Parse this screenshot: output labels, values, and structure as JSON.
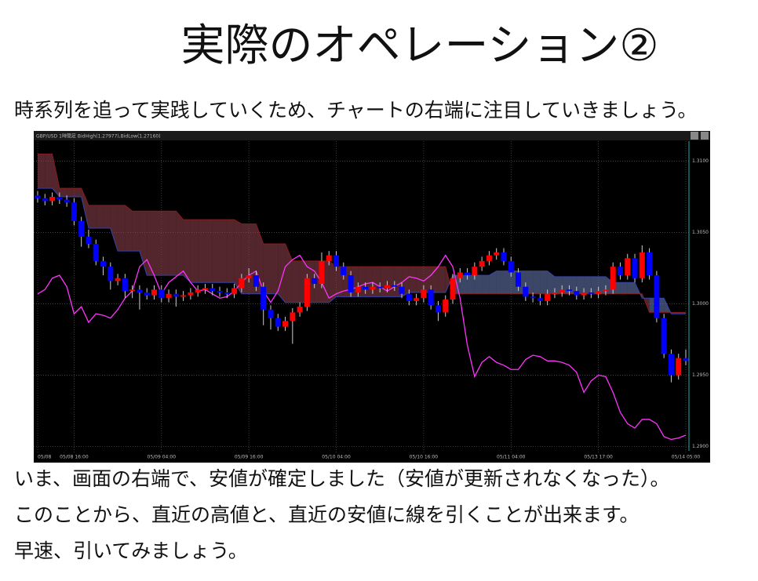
{
  "title": "実際のオペレーション②",
  "intro": "時系列を追って実践していくため、チャートの右端に注目していきましょう。",
  "chart_data": {
    "type": "candlestick",
    "header": "GBP/USD 1時間足 BidHigh(1.27977),BidLow(1.27160)",
    "up_color": "#ff0000",
    "down_color": "#0000ff",
    "line_color": "#ff33ff",
    "grid": true,
    "ylim": [
      1.2897,
      1.3114
    ],
    "yticks": [
      {
        "value": 1.31,
        "label": "1.3100"
      },
      {
        "value": 1.305,
        "label": "1.3050"
      },
      {
        "value": 1.3,
        "label": "1.3000"
      },
      {
        "value": 1.295,
        "label": "1.2950"
      },
      {
        "value": 1.29,
        "label": "1.2900"
      }
    ],
    "xticks": [
      {
        "value": 0,
        "label": "05/08"
      },
      {
        "value": 5,
        "label": "05/08 16:00"
      },
      {
        "value": 17,
        "label": "05/09 04:00"
      },
      {
        "value": 29,
        "label": "05/09 16:00"
      },
      {
        "value": 41,
        "label": "05/10 04:00"
      },
      {
        "value": 53,
        "label": "05/10 16:00"
      },
      {
        "value": 65,
        "label": "05/11 04:00"
      },
      {
        "value": 77,
        "label": "05/13 17:00"
      },
      {
        "value": 89,
        "label": "05/14 05:00"
      }
    ],
    "candles": [
      [
        1.3076,
        1.3079,
        1.3071,
        1.3074
      ],
      [
        1.3074,
        1.3077,
        1.3069,
        1.3072
      ],
      [
        1.3072,
        1.3078,
        1.3069,
        1.3075
      ],
      [
        1.3075,
        1.3078,
        1.307,
        1.3073
      ],
      [
        1.3073,
        1.3076,
        1.3068,
        1.3071
      ],
      [
        1.3071,
        1.3074,
        1.3055,
        1.3058
      ],
      [
        1.3058,
        1.3061,
        1.304,
        1.3047
      ],
      [
        1.3047,
        1.3052,
        1.3039,
        1.3042
      ],
      [
        1.3042,
        1.3045,
        1.3027,
        1.303
      ],
      [
        1.303,
        1.3033,
        1.302,
        1.3026
      ],
      [
        1.3026,
        1.3029,
        1.301,
        1.3016
      ],
      [
        1.3016,
        1.3021,
        1.3013,
        1.3018
      ],
      [
        1.3018,
        1.3021,
        1.3004,
        1.3009
      ],
      [
        1.3009,
        1.3013,
        1.3004,
        1.301
      ],
      [
        1.301,
        1.3013,
        1.2996,
        1.3008
      ],
      [
        1.3008,
        1.3011,
        1.3003,
        1.3006
      ],
      [
        1.3006,
        1.3013,
        1.3003,
        1.301
      ],
      [
        1.301,
        1.3013,
        1.3001,
        1.3004
      ],
      [
        1.3004,
        1.301,
        1.3001,
        1.3007
      ],
      [
        1.3007,
        1.301,
        1.2998,
        1.3005
      ],
      [
        1.3005,
        1.3009,
        1.3002,
        1.3006
      ],
      [
        1.3006,
        1.3011,
        1.3003,
        1.3008
      ],
      [
        1.3008,
        1.3013,
        1.3005,
        1.301
      ],
      [
        1.301,
        1.3014,
        1.3007,
        1.3011
      ],
      [
        1.3011,
        1.3014,
        1.3006,
        1.3009
      ],
      [
        1.3009,
        1.3012,
        1.3005,
        1.3008
      ],
      [
        1.3008,
        1.3011,
        1.3004,
        1.3007
      ],
      [
        1.3007,
        1.3014,
        1.3004,
        1.3011
      ],
      [
        1.3011,
        1.3021,
        1.3008,
        1.3018
      ],
      [
        1.3018,
        1.3025,
        1.3015,
        1.302
      ],
      [
        1.302,
        1.3023,
        1.3009,
        1.3012
      ],
      [
        1.3012,
        1.3015,
        1.2985,
        1.2996
      ],
      [
        1.2996,
        1.2999,
        1.2982,
        1.299
      ],
      [
        1.299,
        1.2993,
        1.2981,
        1.2984
      ],
      [
        1.2984,
        1.2991,
        1.2981,
        1.2988
      ],
      [
        1.2988,
        1.2997,
        1.2972,
        1.2994
      ],
      [
        1.2994,
        1.3001,
        1.2991,
        1.2998
      ],
      [
        1.2998,
        1.3021,
        1.2995,
        1.3018
      ],
      [
        1.3018,
        1.3021,
        1.3011,
        1.3014
      ],
      [
        1.3014,
        1.3036,
        1.3011,
        1.303
      ],
      [
        1.303,
        1.3037,
        1.3027,
        1.3034
      ],
      [
        1.3034,
        1.3037,
        1.3023,
        1.3026
      ],
      [
        1.3026,
        1.3029,
        1.3017,
        1.302
      ],
      [
        1.302,
        1.3023,
        1.3005,
        1.3008
      ],
      [
        1.3008,
        1.3015,
        1.3005,
        1.3012
      ],
      [
        1.3012,
        1.3015,
        1.3007,
        1.301
      ],
      [
        1.301,
        1.3015,
        1.3007,
        1.3012
      ],
      [
        1.3012,
        1.3015,
        1.3008,
        1.3011
      ],
      [
        1.3011,
        1.3016,
        1.3008,
        1.3013
      ],
      [
        1.3013,
        1.3016,
        1.3009,
        1.3012
      ],
      [
        1.3012,
        1.3015,
        1.3004,
        1.3007
      ],
      [
        1.3007,
        1.301,
        1.2999,
        1.3002
      ],
      [
        1.3002,
        1.3007,
        1.2999,
        1.3004
      ],
      [
        1.3004,
        1.3013,
        1.3001,
        1.301
      ],
      [
        1.301,
        1.3013,
        1.2996,
        1.2999
      ],
      [
        1.2999,
        1.3002,
        1.2988,
        1.2994
      ],
      [
        1.2994,
        1.3006,
        1.2991,
        1.3003
      ],
      [
        1.3003,
        1.3021,
        1.3,
        1.3018
      ],
      [
        1.3018,
        1.3025,
        1.3015,
        1.3022
      ],
      [
        1.3022,
        1.3025,
        1.3017,
        1.302
      ],
      [
        1.302,
        1.3029,
        1.3017,
        1.3026
      ],
      [
        1.3026,
        1.3033,
        1.3023,
        1.303
      ],
      [
        1.303,
        1.3037,
        1.3027,
        1.3034
      ],
      [
        1.3034,
        1.3039,
        1.3031,
        1.3036
      ],
      [
        1.3036,
        1.3039,
        1.3027,
        1.303
      ],
      [
        1.303,
        1.3033,
        1.3019,
        1.3022
      ],
      [
        1.3022,
        1.3025,
        1.3009,
        1.3012
      ],
      [
        1.3012,
        1.3015,
        1.3002,
        1.3005
      ],
      [
        1.3005,
        1.3008,
        1.3001,
        1.3004
      ],
      [
        1.3004,
        1.3007,
        1.2999,
        1.3002
      ],
      [
        1.3002,
        1.301,
        1.2999,
        1.3007
      ],
      [
        1.3007,
        1.3011,
        1.3004,
        1.3008
      ],
      [
        1.3008,
        1.3013,
        1.3005,
        1.301
      ],
      [
        1.301,
        1.3013,
        1.3006,
        1.3009
      ],
      [
        1.3009,
        1.3012,
        1.3003,
        1.3006
      ],
      [
        1.3006,
        1.3011,
        1.3003,
        1.3008
      ],
      [
        1.3008,
        1.3011,
        1.3004,
        1.3007
      ],
      [
        1.3007,
        1.3012,
        1.3004,
        1.3009
      ],
      [
        1.3009,
        1.3013,
        1.3006,
        1.301
      ],
      [
        1.301,
        1.3029,
        1.3007,
        1.3026
      ],
      [
        1.3026,
        1.3029,
        1.3017,
        1.302
      ],
      [
        1.302,
        1.3035,
        1.3017,
        1.3032
      ],
      [
        1.3032,
        1.3035,
        1.3015,
        1.3018
      ],
      [
        1.3018,
        1.3041,
        1.3015,
        1.3036
      ],
      [
        1.3036,
        1.3039,
        1.3017,
        1.302
      ],
      [
        1.302,
        1.3023,
        1.2987,
        1.299
      ],
      [
        1.299,
        1.2993,
        1.2962,
        1.2965
      ],
      [
        1.2965,
        1.2968,
        1.2945,
        1.295
      ],
      [
        1.295,
        1.2965,
        1.2947,
        1.2962
      ],
      [
        1.2962,
        1.2968,
        1.2957,
        1.296
      ]
    ],
    "lagging_line": [
      1.3007,
      1.301,
      1.3018,
      1.302,
      1.3012,
      1.2993,
      1.2998,
      1.2987,
      1.2993,
      1.2992,
      1.299,
      1.2996,
      1.3004,
      1.3009,
      1.3026,
      1.3031,
      1.302,
      1.3007,
      1.3015,
      1.3019,
      1.3023,
      1.3015,
      1.3009,
      1.301,
      1.3007,
      1.3004,
      1.3005,
      1.3009,
      1.3015,
      1.302,
      1.3023,
      1.3009,
      1.3001,
      1.3009,
      1.3026,
      1.3031,
      1.3034,
      1.3026,
      1.3023,
      1.3015,
      1.3004,
      1.3007,
      1.3009,
      1.301,
      1.3012,
      1.3014,
      1.3015,
      1.3012,
      1.3009,
      1.3012,
      1.3015,
      1.3019,
      1.3018,
      1.3016,
      1.302,
      1.3026,
      1.3034,
      1.3026,
      1.3004,
      1.2971,
      1.2949,
      1.2959,
      1.2963,
      1.2959,
      1.2957,
      1.2954,
      1.2954,
      1.2961,
      1.2964,
      1.2963,
      1.296,
      1.296,
      1.2959,
      1.2957,
      1.2952,
      1.2938,
      1.2946,
      1.295,
      1.2949,
      1.2938,
      1.2924,
      1.2916,
      1.2913,
      1.2919,
      1.2919,
      1.2916,
      1.2907,
      1.2905,
      1.2906,
      1.2908
    ],
    "span_a": [
      1.3081,
      1.3081,
      1.3081,
      1.3075,
      1.3075,
      1.3075,
      1.3075,
      1.3053,
      1.3053,
      1.3053,
      1.3053,
      1.3037,
      1.3037,
      1.3037,
      1.3037,
      1.302,
      1.302,
      1.302,
      1.302,
      1.302,
      1.302,
      1.3015,
      1.3015,
      1.3015,
      1.3015,
      1.3015,
      1.3015,
      1.3015,
      1.3007,
      1.3007,
      1.3007,
      1.3007,
      1.3007,
      1.3007,
      1.3001,
      1.3001,
      1.3001,
      1.3001,
      1.3001,
      1.3001,
      1.3001,
      1.3005,
      1.3005,
      1.3005,
      1.3005,
      1.3005,
      1.3005,
      1.3005,
      1.3005,
      1.3005,
      1.3005,
      1.3008,
      1.3008,
      1.3008,
      1.3008,
      1.3008,
      1.3008,
      1.302,
      1.302,
      1.302,
      1.302,
      1.302,
      1.302,
      1.3023,
      1.3023,
      1.3023,
      1.3023,
      1.3023,
      1.3023,
      1.3023,
      1.3023,
      1.3019,
      1.3019,
      1.3019,
      1.3019,
      1.3019,
      1.3019,
      1.3019,
      1.3019,
      1.3015,
      1.3015,
      1.3015,
      1.3015,
      1.3004,
      1.3004,
      1.3004,
      1.3004,
      1.2993,
      1.2993,
      1.2993
    ],
    "span_b": [
      1.3105,
      1.3105,
      1.3105,
      1.3081,
      1.3081,
      1.3081,
      1.3081,
      1.3069,
      1.3069,
      1.3069,
      1.3069,
      1.3069,
      1.3069,
      1.3065,
      1.3065,
      1.3065,
      1.3065,
      1.3065,
      1.3065,
      1.3065,
      1.3059,
      1.3059,
      1.3059,
      1.3059,
      1.3059,
      1.3059,
      1.3059,
      1.3059,
      1.3056,
      1.3056,
      1.3056,
      1.3042,
      1.3042,
      1.3042,
      1.3042,
      1.303,
      1.303,
      1.303,
      1.303,
      1.303,
      1.303,
      1.3026,
      1.3026,
      1.3026,
      1.3026,
      1.3026,
      1.3026,
      1.3026,
      1.3026,
      1.3026,
      1.3026,
      1.3026,
      1.3026,
      1.3026,
      1.3026,
      1.3026,
      1.3026,
      1.3007,
      1.3007,
      1.3007,
      1.3007,
      1.3007,
      1.3007,
      1.3007,
      1.3007,
      1.3007,
      1.3007,
      1.3007,
      1.3007,
      1.3007,
      1.3007,
      1.3007,
      1.3007,
      1.3007,
      1.3007,
      1.3007,
      1.3007,
      1.3007,
      1.3007,
      1.3007,
      1.3007,
      1.3007,
      1.3007,
      1.3007,
      1.2994,
      1.2994,
      1.2994,
      1.2994,
      1.2994,
      1.2994
    ]
  },
  "body": [
    "いま、画面の右端で、安値が確定しました（安値が更新されなくなった）。",
    "このことから、直近の高値と、直近の安値に線を引くことが出来ます。",
    "早速、引いてみましょう。"
  ]
}
